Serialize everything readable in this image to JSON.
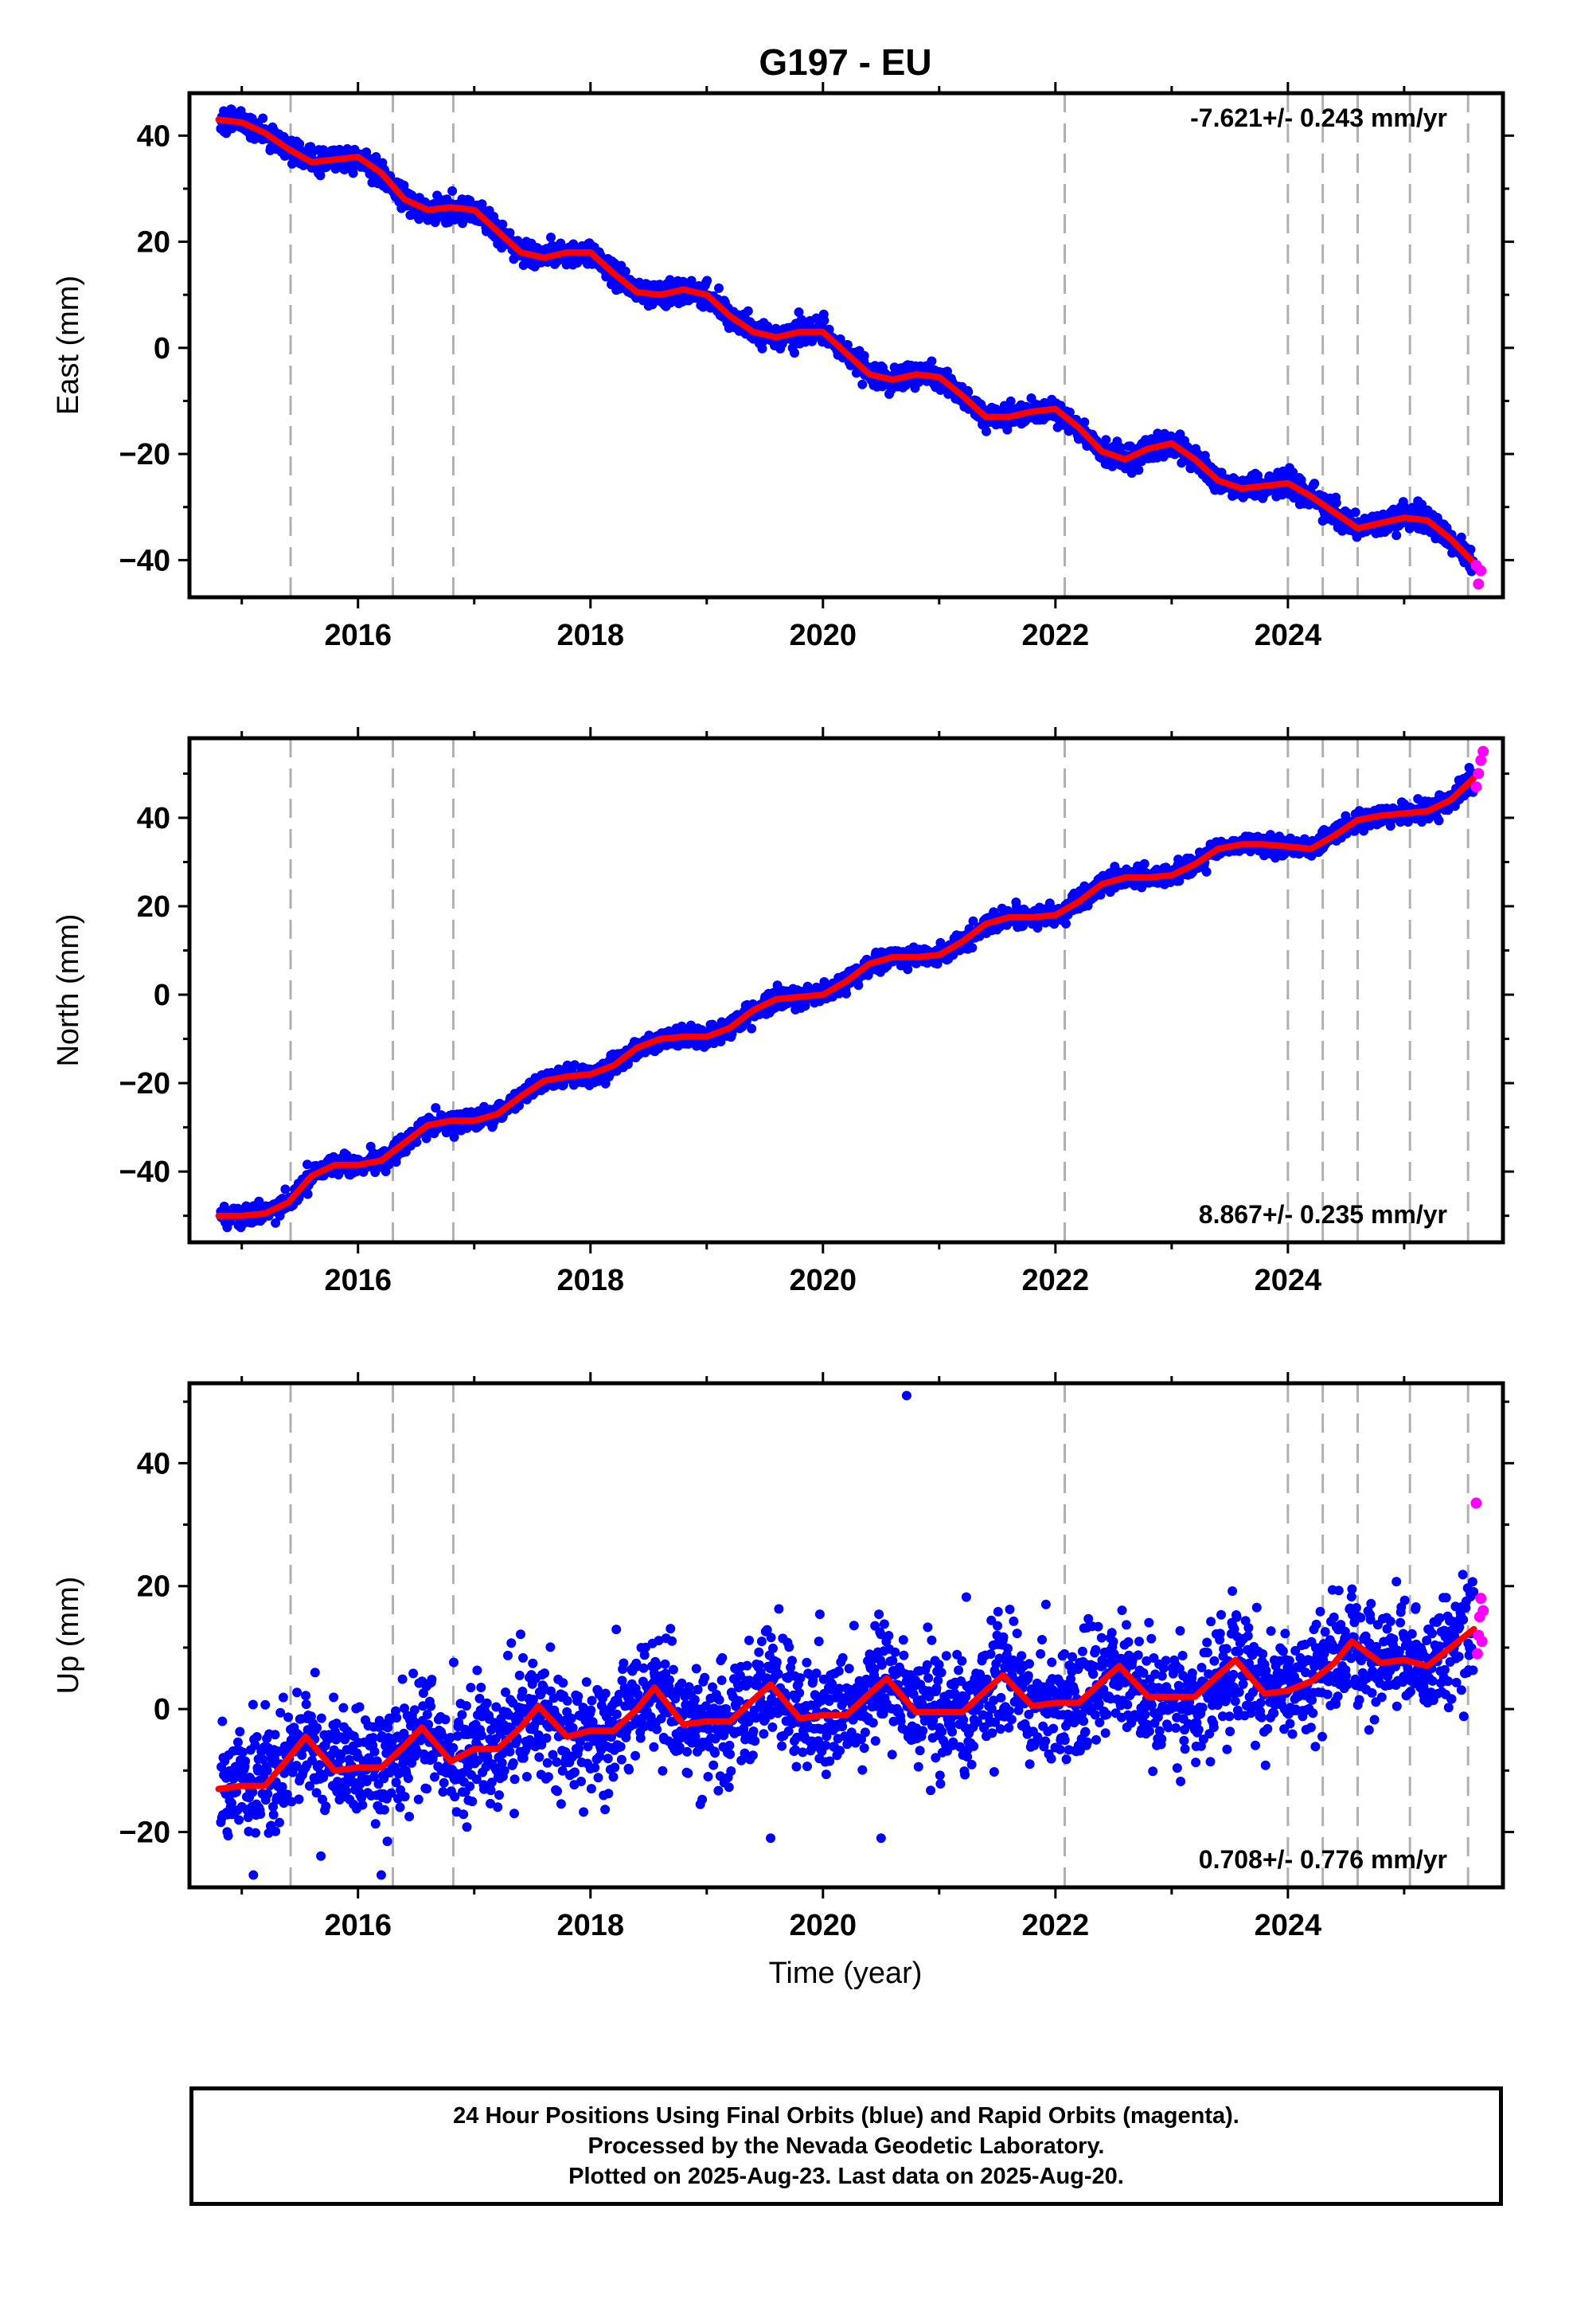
{
  "title": "G197 - EU",
  "xlabel": "Time (year)",
  "x_tick_labels": [
    "2016",
    "2018",
    "2020",
    "2022",
    "2024"
  ],
  "caption": [
    "24 Hour Positions Using Final Orbits (blue) and Rapid Orbits (magenta).",
    "Processed by the Nevada Geodetic Laboratory.",
    "Plotted on 2025-Aug-23. Last data on 2025-Aug-20."
  ],
  "colors": {
    "final": "#0000ff",
    "rapid": "#ff00ff",
    "model": "#ff0000",
    "event_lines": "#b0b0b0"
  },
  "chart_data": [
    {
      "type": "scatter",
      "name": "east",
      "ylabel": "East (mm)",
      "xlim": [
        2014.55,
        2025.85
      ],
      "ylim": [
        -47,
        48
      ],
      "yticks": [
        -40,
        -20,
        0,
        20,
        40
      ],
      "rate_label": "-7.621+/- 0.243 mm/yr",
      "rate_position": "top-right",
      "event_lines": [
        2015.42,
        2016.3,
        2016.82,
        2022.08,
        2024.0,
        2024.3,
        2024.6,
        2025.05,
        2025.55
      ],
      "model_curve": {
        "x": [
          2014.8,
          2015.0,
          2015.2,
          2015.4,
          2015.6,
          2015.8,
          2016.0,
          2016.2,
          2016.4,
          2016.6,
          2016.8,
          2017.0,
          2017.2,
          2017.4,
          2017.6,
          2017.8,
          2018.0,
          2018.2,
          2018.4,
          2018.6,
          2018.8,
          2019.0,
          2019.2,
          2019.4,
          2019.6,
          2019.8,
          2020.0,
          2020.2,
          2020.4,
          2020.6,
          2020.8,
          2021.0,
          2021.2,
          2021.4,
          2021.6,
          2021.8,
          2022.0,
          2022.2,
          2022.4,
          2022.6,
          2022.8,
          2023.0,
          2023.2,
          2023.4,
          2023.6,
          2023.8,
          2024.0,
          2024.2,
          2024.4,
          2024.6,
          2024.8,
          2025.0,
          2025.2,
          2025.4,
          2025.6
        ],
        "y": [
          43,
          42.5,
          40.5,
          37.5,
          35,
          35.5,
          36,
          33,
          28,
          26,
          26.5,
          26,
          22,
          18,
          17,
          18,
          18,
          14,
          10.5,
          10,
          11,
          10,
          6,
          3,
          2,
          3,
          3,
          -1,
          -5,
          -6,
          -5,
          -5.5,
          -9,
          -13,
          -13,
          -12,
          -11.5,
          -15,
          -19.5,
          -21,
          -19,
          -18,
          -21,
          -25,
          -26.5,
          -26,
          -25.5,
          -28,
          -31,
          -34,
          -33,
          -32,
          -32.5,
          -36,
          -40.5
        ]
      },
      "rapid_points": {
        "x": [
          2025.62,
          2025.64,
          2025.66
        ],
        "y": [
          -41,
          -44.5,
          -42
        ]
      }
    },
    {
      "type": "scatter",
      "name": "north",
      "ylabel": "North (mm)",
      "xlim": [
        2014.55,
        2025.85
      ],
      "ylim": [
        -56,
        58
      ],
      "yticks": [
        -40,
        -20,
        0,
        20,
        40
      ],
      "rate_label": "8.867+/- 0.235 mm/yr",
      "rate_position": "bottom-right",
      "event_lines": [
        2015.42,
        2016.3,
        2016.82,
        2022.08,
        2024.0,
        2024.3,
        2024.6,
        2025.05,
        2025.55
      ],
      "model_curve": {
        "x": [
          2014.8,
          2015.0,
          2015.2,
          2015.4,
          2015.6,
          2015.8,
          2016.0,
          2016.2,
          2016.4,
          2016.6,
          2016.8,
          2017.0,
          2017.2,
          2017.4,
          2017.6,
          2017.8,
          2018.0,
          2018.2,
          2018.4,
          2018.6,
          2018.8,
          2019.0,
          2019.2,
          2019.4,
          2019.6,
          2019.8,
          2020.0,
          2020.2,
          2020.4,
          2020.6,
          2020.8,
          2021.0,
          2021.2,
          2021.4,
          2021.6,
          2021.8,
          2022.0,
          2022.2,
          2022.4,
          2022.6,
          2022.8,
          2023.0,
          2023.2,
          2023.4,
          2023.6,
          2023.8,
          2024.0,
          2024.2,
          2024.4,
          2024.6,
          2024.8,
          2025.0,
          2025.2,
          2025.4,
          2025.6
        ],
        "y": [
          -50,
          -50,
          -49.5,
          -47,
          -41,
          -38.5,
          -38.5,
          -37.5,
          -33.5,
          -29.5,
          -28.5,
          -28.5,
          -27,
          -23,
          -19.5,
          -18.5,
          -18,
          -16,
          -12,
          -10,
          -9.5,
          -9.5,
          -7.5,
          -3.5,
          -1,
          -0.5,
          0,
          3,
          7,
          8.5,
          8.5,
          9,
          12,
          16,
          17.5,
          17.5,
          18,
          21,
          25,
          26.5,
          26.5,
          27,
          29.5,
          33,
          34,
          34,
          33.5,
          33,
          36,
          39.5,
          40.5,
          41,
          41.5,
          44,
          49
        ]
      },
      "rapid_points": {
        "x": [
          2025.62,
          2025.64,
          2025.66,
          2025.68
        ],
        "y": [
          47,
          50,
          53,
          55
        ]
      }
    },
    {
      "type": "scatter",
      "name": "up",
      "ylabel": "Up (mm)",
      "xlim": [
        2014.55,
        2025.85
      ],
      "ylim": [
        -29,
        53
      ],
      "yticks": [
        -20,
        0,
        20,
        40
      ],
      "rate_label": "0.708+/- 0.776 mm/yr",
      "rate_position": "bottom-right",
      "event_lines": [
        2015.42,
        2016.3,
        2016.82,
        2022.08,
        2024.0,
        2024.3,
        2024.6,
        2025.05,
        2025.55
      ],
      "model_curve": {
        "x": [
          2014.8,
          2015.0,
          2015.2,
          2015.4,
          2015.55,
          2015.8,
          2016.0,
          2016.2,
          2016.4,
          2016.55,
          2016.8,
          2017.0,
          2017.2,
          2017.4,
          2017.55,
          2017.8,
          2018.0,
          2018.2,
          2018.4,
          2018.55,
          2018.8,
          2019.0,
          2019.2,
          2019.4,
          2019.55,
          2019.8,
          2020.0,
          2020.2,
          2020.4,
          2020.55,
          2020.8,
          2021.0,
          2021.2,
          2021.4,
          2021.55,
          2021.8,
          2022.0,
          2022.2,
          2022.4,
          2022.55,
          2022.8,
          2023.0,
          2023.2,
          2023.4,
          2023.55,
          2023.8,
          2024.0,
          2024.2,
          2024.4,
          2024.55,
          2024.8,
          2025.0,
          2025.2,
          2025.4,
          2025.6
        ],
        "y": [
          -13,
          -12.5,
          -12.5,
          -8,
          -4.5,
          -10,
          -9.5,
          -9.5,
          -6,
          -3,
          -8.5,
          -6.5,
          -6.5,
          -3,
          0.5,
          -4.5,
          -3.5,
          -3.5,
          0,
          3.5,
          -2.5,
          -2,
          -2,
          1.5,
          4,
          -1.5,
          -1,
          -1,
          2.5,
          5,
          -0.5,
          -0.5,
          -0.5,
          3,
          5.5,
          0.5,
          1,
          1,
          4.5,
          7,
          2,
          2,
          2,
          5.5,
          8,
          2.5,
          3,
          4.5,
          7.5,
          11,
          7.5,
          8,
          7,
          10,
          13
        ]
      },
      "rapid_points": {
        "x": [
          2025.62,
          2025.63,
          2025.64,
          2025.65,
          2025.66,
          2025.67,
          2025.68
        ],
        "y": [
          33.5,
          9,
          12,
          15,
          18,
          11,
          16
        ]
      },
      "outliers": {
        "x": [
          2020.72,
          2019.55,
          2020.5,
          2016.2,
          2015.1
        ],
        "y": [
          51,
          -21,
          -21,
          -27,
          -27
        ]
      }
    }
  ]
}
